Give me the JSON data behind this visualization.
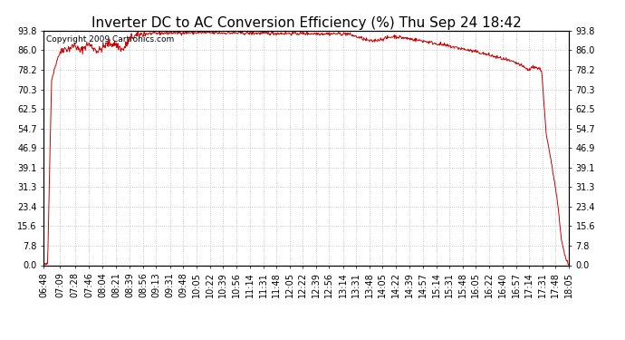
{
  "title": "Inverter DC to AC Conversion Efficiency (%) Thu Sep 24 18:42",
  "copyright": "Copyright 2009 Cartronics.com",
  "line_color": "#cc0000",
  "bg_color": "#ffffff",
  "plot_bg_color": "#ffffff",
  "grid_color": "#bbbbbb",
  "ylim": [
    0.0,
    93.8
  ],
  "yticks": [
    0.0,
    7.8,
    15.6,
    23.4,
    31.3,
    39.1,
    46.9,
    54.7,
    62.5,
    70.3,
    78.2,
    86.0,
    93.8
  ],
  "xtick_labels": [
    "06:48",
    "07:09",
    "07:28",
    "07:46",
    "08:04",
    "08:21",
    "08:39",
    "08:56",
    "09:13",
    "09:31",
    "09:48",
    "10:05",
    "10:22",
    "10:39",
    "10:56",
    "11:14",
    "11:31",
    "11:48",
    "12:05",
    "12:22",
    "12:39",
    "12:56",
    "13:14",
    "13:31",
    "13:48",
    "14:05",
    "14:22",
    "14:39",
    "14:57",
    "15:14",
    "15:31",
    "15:48",
    "16:05",
    "16:22",
    "16:40",
    "16:57",
    "17:14",
    "17:31",
    "17:48",
    "18:05"
  ],
  "title_fontsize": 11,
  "label_fontsize": 7,
  "copyright_fontsize": 6.5
}
